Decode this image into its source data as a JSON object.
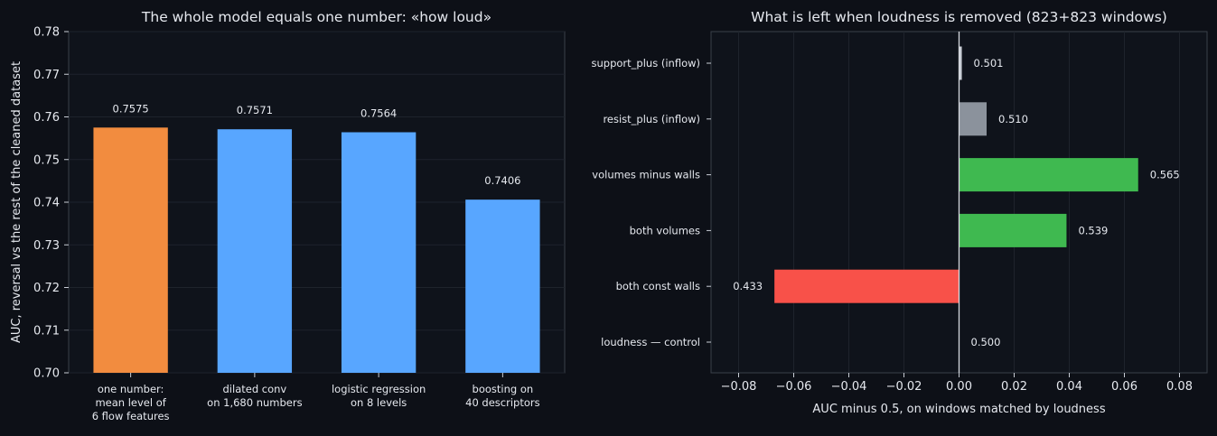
{
  "chart_data": [
    {
      "type": "bar",
      "title": "The whole model equals one number: «how loud»",
      "xlabel": "",
      "ylabel": "AUC, reversal vs the rest of the cleaned dataset",
      "ylim": [
        0.7,
        0.78
      ],
      "yticks": [
        "0.70",
        "0.71",
        "0.72",
        "0.73",
        "0.74",
        "0.75",
        "0.76",
        "0.77",
        "0.78"
      ],
      "categories": [
        [
          "one number:",
          "mean level of",
          "6 flow features"
        ],
        [
          "dilated conv",
          "on 1,680 numbers"
        ],
        [
          "logistic regression",
          "on 8 levels"
        ],
        [
          "boosting on",
          "40 descriptors"
        ]
      ],
      "values": [
        0.7575,
        0.7571,
        0.7564,
        0.7406
      ],
      "value_labels": [
        "0.7575",
        "0.7571",
        "0.7564",
        "0.7406"
      ],
      "colors": [
        "#f28c3f",
        "#58a6ff",
        "#58a6ff",
        "#58a6ff"
      ],
      "grid": true
    },
    {
      "type": "bar",
      "orientation": "horizontal",
      "title": "What is left when loudness is removed (823+823 windows)",
      "xlabel": "AUC minus 0.5, on windows matched by loudness",
      "ylabel": "",
      "xlim": [
        -0.09,
        0.09
      ],
      "xticks": [
        "−0.08",
        "−0.06",
        "−0.04",
        "−0.02",
        "0.00",
        "0.02",
        "0.04",
        "0.06",
        "0.08"
      ],
      "categories": [
        "support_plus (inflow)",
        "resist_plus (inflow)",
        "volumes minus walls",
        "both volumes",
        "both const walls",
        "loudness — control"
      ],
      "values": [
        0.001,
        0.01,
        0.065,
        0.039,
        -0.067,
        0.0
      ],
      "value_labels": [
        "0.501",
        "0.510",
        "0.565",
        "0.539",
        "0.433",
        "0.500"
      ],
      "colors": [
        "#c9ced6",
        "#8b929c",
        "#3fb950",
        "#3fb950",
        "#f85149",
        "#c9ced6"
      ],
      "grid": true
    }
  ]
}
